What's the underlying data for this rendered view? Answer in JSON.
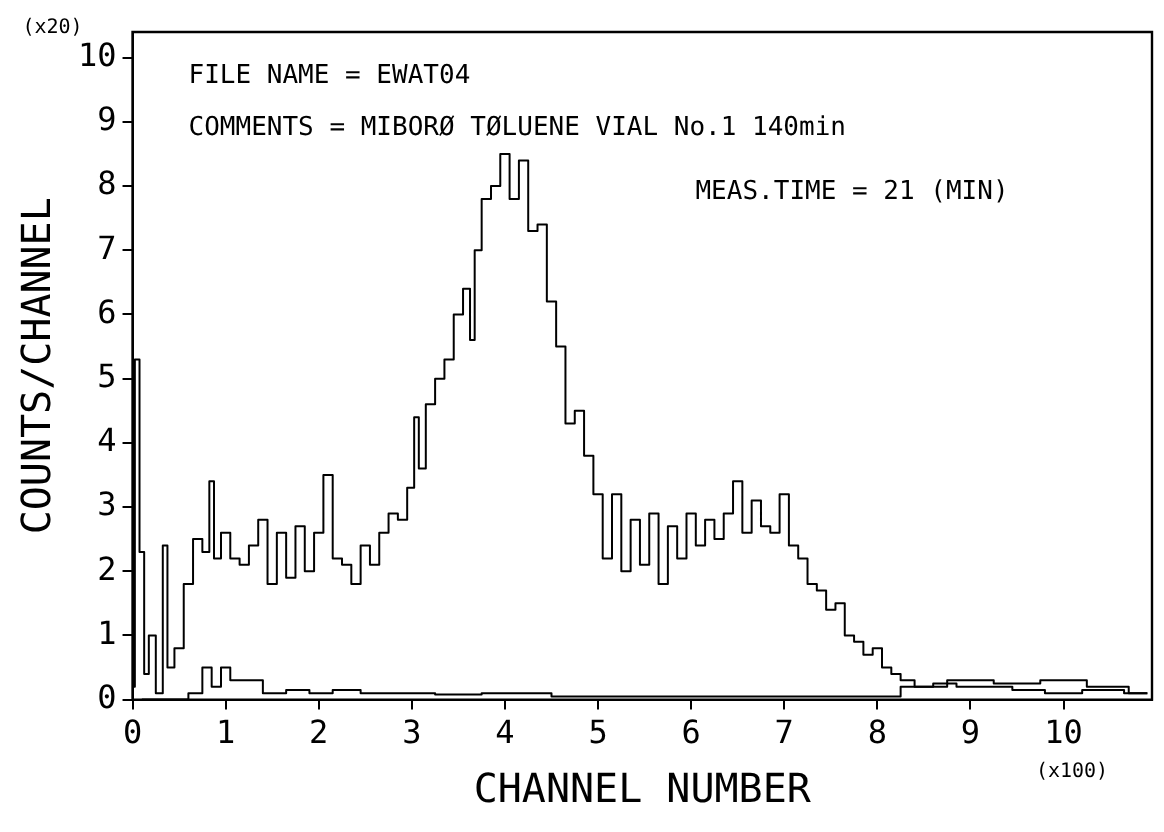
{
  "chart_data": {
    "type": "step",
    "xlabel": "CHANNEL NUMBER",
    "ylabel": "COUNTS/CHANNEL",
    "annotations": [
      "FILE NAME = EWAT04",
      "COMMENTS = MIBORØ TØLUENE VIAL No.1 140min",
      "MEAS.TIME = 21 (MIN)",
      "(x20)",
      "(x100)"
    ],
    "xlim": [
      0,
      10.95
    ],
    "xticks": [
      0,
      1,
      2,
      3,
      4,
      5,
      6,
      7,
      8,
      9,
      10
    ],
    "ylim": [
      0,
      10.4
    ],
    "yticks": [
      0,
      1,
      2,
      3,
      4,
      5,
      6,
      7,
      8,
      9,
      10
    ],
    "grid": false,
    "legend": false,
    "marker": "none",
    "line_style": "solid",
    "series": [
      {
        "color": "#000000",
        "x": [
          0,
          0.05,
          0.1,
          0.15,
          0.2,
          0.3,
          0.35,
          0.4,
          0.5,
          0.6,
          0.7,
          0.8,
          0.85,
          0.9,
          1.0,
          1.1,
          1.2,
          1.3,
          1.4,
          1.5,
          1.6,
          1.7,
          1.8,
          1.9,
          2.0,
          2.1,
          2.2,
          2.3,
          2.4,
          2.5,
          2.6,
          2.7,
          2.8,
          2.9,
          3.0,
          3.05,
          3.1,
          3.2,
          3.3,
          3.4,
          3.5,
          3.6,
          3.65,
          3.7,
          3.8,
          3.9,
          4.0,
          4.1,
          4.2,
          4.3,
          4.4,
          4.5,
          4.6,
          4.7,
          4.8,
          4.9,
          5.0,
          5.1,
          5.2,
          5.3,
          5.4,
          5.5,
          5.6,
          5.7,
          5.8,
          5.9,
          6.0,
          6.1,
          6.2,
          6.3,
          6.4,
          6.5,
          6.6,
          6.7,
          6.8,
          6.9,
          7.0,
          7.1,
          7.2,
          7.3,
          7.4,
          7.5,
          7.6,
          7.7,
          7.8,
          7.9,
          8.0,
          8.1,
          8.2,
          8.3,
          8.5,
          8.7,
          9.0,
          9.3,
          9.6,
          10.0,
          10.4,
          10.9
        ],
        "values": [
          0.2,
          5.3,
          2.3,
          0.4,
          1.0,
          0.1,
          2.4,
          0.5,
          0.8,
          1.8,
          2.5,
          2.3,
          3.4,
          2.2,
          2.6,
          2.2,
          2.1,
          2.4,
          2.8,
          1.8,
          2.6,
          1.9,
          2.7,
          2.0,
          2.6,
          3.5,
          2.2,
          2.1,
          1.8,
          2.4,
          2.1,
          2.6,
          2.9,
          2.8,
          3.3,
          4.4,
          3.6,
          4.6,
          5.0,
          5.3,
          6.0,
          6.4,
          5.6,
          7.0,
          7.8,
          8.0,
          8.5,
          7.8,
          8.4,
          7.3,
          7.4,
          6.2,
          5.5,
          4.3,
          4.5,
          3.8,
          3.2,
          2.2,
          3.2,
          2.0,
          2.8,
          2.1,
          2.9,
          1.8,
          2.7,
          2.2,
          2.9,
          2.4,
          2.8,
          2.5,
          2.9,
          3.4,
          2.6,
          3.1,
          2.7,
          2.6,
          3.2,
          2.4,
          2.2,
          1.8,
          1.7,
          1.4,
          1.5,
          1.0,
          0.9,
          0.7,
          0.8,
          0.5,
          0.4,
          0.3,
          0.2,
          0.25,
          0.2,
          0.2,
          0.15,
          0.1,
          0.15,
          0.1
        ]
      },
      {
        "color": "#000000",
        "x": [
          0.1,
          0.5,
          0.7,
          0.8,
          0.9,
          1.0,
          1.1,
          1.3,
          1.5,
          1.8,
          2.0,
          2.3,
          2.6,
          3.0,
          3.5,
          4.0,
          5.0,
          6.0,
          7.0,
          8.0,
          8.5,
          9.0,
          9.5,
          10.0,
          10.5,
          10.9
        ],
        "values": [
          0,
          0,
          0.1,
          0.5,
          0.2,
          0.5,
          0.3,
          0.3,
          0.1,
          0.15,
          0.1,
          0.15,
          0.1,
          0.1,
          0.08,
          0.1,
          0.05,
          0.05,
          0.05,
          0.05,
          0.2,
          0.3,
          0.25,
          0.3,
          0.2,
          0.1
        ]
      }
    ]
  }
}
